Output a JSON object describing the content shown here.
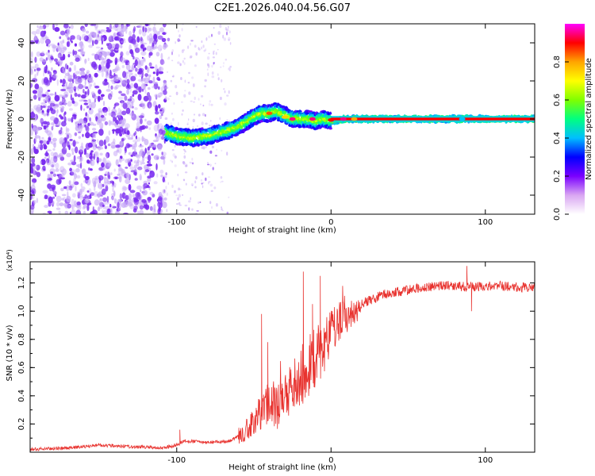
{
  "title": "C2E1.2026.040.04.56.G07",
  "colors": {
    "snr_line": "#e8322e",
    "scatter_dot": "#7a2bf0",
    "scatter_light": "#c7a9f7",
    "axis": "#000000"
  },
  "chart_data": [
    {
      "type": "heatmap",
      "title": "C2E1.2026.040.04.56.G07",
      "xlabel": "Height of straight line (km)",
      "ylabel": "Frequency (Hz)",
      "xlim": [
        -195,
        132
      ],
      "ylim": [
        -50,
        50
      ],
      "xticks": [
        -100,
        0,
        100
      ],
      "yticks": [
        -40,
        -20,
        0,
        20,
        40
      ],
      "colorbar": {
        "label": "Normalized spectral amplitude",
        "range": [
          0,
          1
        ],
        "ticks": [
          0.0,
          0.2,
          0.4,
          0.6,
          0.8
        ],
        "tick_labels": [
          "0.0",
          "0.2",
          "0.4",
          "0.6",
          "0.8"
        ],
        "colormap": [
          "#ffffff",
          "#d9a6f2",
          "#7a00ff",
          "#0000ff",
          "#00bfff",
          "#00ff80",
          "#80ff00",
          "#ffff00",
          "#ffa500",
          "#ff0000",
          "#ff00ff"
        ]
      },
      "noise_region_x": [
        -195,
        -107
      ],
      "sparse_region_x": [
        -107,
        -65
      ],
      "signal_track": {
        "x": [
          -107,
          -100,
          -90,
          -80,
          -70,
          -60,
          -50,
          -45,
          -40,
          -35,
          -30,
          -25,
          -20,
          -15,
          -10,
          -5,
          0,
          10,
          20,
          40,
          60,
          80,
          100,
          132
        ],
        "y": [
          -7,
          -9,
          -10,
          -9,
          -7,
          -4,
          1,
          3,
          3,
          4,
          2,
          0,
          0,
          0,
          -1,
          0,
          -1,
          0,
          0,
          0,
          0,
          0,
          0,
          0
        ],
        "bright_from_x": 0,
        "highlight_points": [
          {
            "x": -40,
            "y": 3,
            "value": 0.85
          },
          {
            "x": -30,
            "y": 1,
            "value": 0.75
          },
          {
            "x": -25,
            "y": 0,
            "value": 0.95
          },
          {
            "x": -12,
            "y": 0,
            "value": 0.95
          },
          {
            "x": 0,
            "y": -0.5,
            "value": 0.9
          },
          {
            "x": 8,
            "y": 0,
            "value": 0.95
          },
          {
            "x": 15,
            "y": 0,
            "value": 0.8
          },
          {
            "x": 85,
            "y": 0,
            "value": 0.4
          }
        ]
      }
    },
    {
      "type": "line",
      "xlabel": "Height of straight line (km)",
      "ylabel": "SNR (10 * v/v)",
      "scale_label": "(x10⁴)",
      "xlim": [
        -195,
        132
      ],
      "ylim": [
        0,
        1.35
      ],
      "xticks": [
        -100,
        0,
        100
      ],
      "yticks": [
        0.2,
        0.4,
        0.6,
        0.8,
        1.0,
        1.2
      ],
      "ytick_labels": [
        "0.2",
        "0.4",
        "0.6",
        "0.8",
        "1.0",
        "1.2"
      ],
      "series": [
        {
          "name": "SNR",
          "trend_x": [
            -195,
            -170,
            -150,
            -130,
            -110,
            -100,
            -95,
            -80,
            -65,
            -55,
            -48,
            -44,
            -40,
            -36,
            -32,
            -28,
            -24,
            -20,
            -16,
            -12,
            -8,
            -4,
            0,
            4,
            8,
            12,
            16,
            20,
            25,
            30,
            35,
            40,
            50,
            60,
            70,
            80,
            90,
            100,
            110,
            120,
            132
          ],
          "trend_y": [
            0.02,
            0.03,
            0.05,
            0.04,
            0.03,
            0.05,
            0.08,
            0.07,
            0.08,
            0.15,
            0.25,
            0.3,
            0.35,
            0.3,
            0.33,
            0.4,
            0.48,
            0.52,
            0.58,
            0.62,
            0.7,
            0.75,
            0.85,
            0.9,
            0.95,
            0.98,
            1.0,
            1.05,
            1.08,
            1.1,
            1.12,
            1.13,
            1.15,
            1.17,
            1.18,
            1.18,
            1.17,
            1.18,
            1.18,
            1.17,
            1.17
          ],
          "spikes": [
            {
              "x": -98,
              "y": 0.16
            },
            {
              "x": -45,
              "y": 0.98
            },
            {
              "x": -41,
              "y": 0.78
            },
            {
              "x": -18,
              "y": 1.28
            },
            {
              "x": -12,
              "y": 1.05
            },
            {
              "x": -7,
              "y": 1.25
            },
            {
              "x": 88,
              "y": 1.32
            },
            {
              "x": 91,
              "y": 1.0
            }
          ]
        }
      ]
    }
  ]
}
